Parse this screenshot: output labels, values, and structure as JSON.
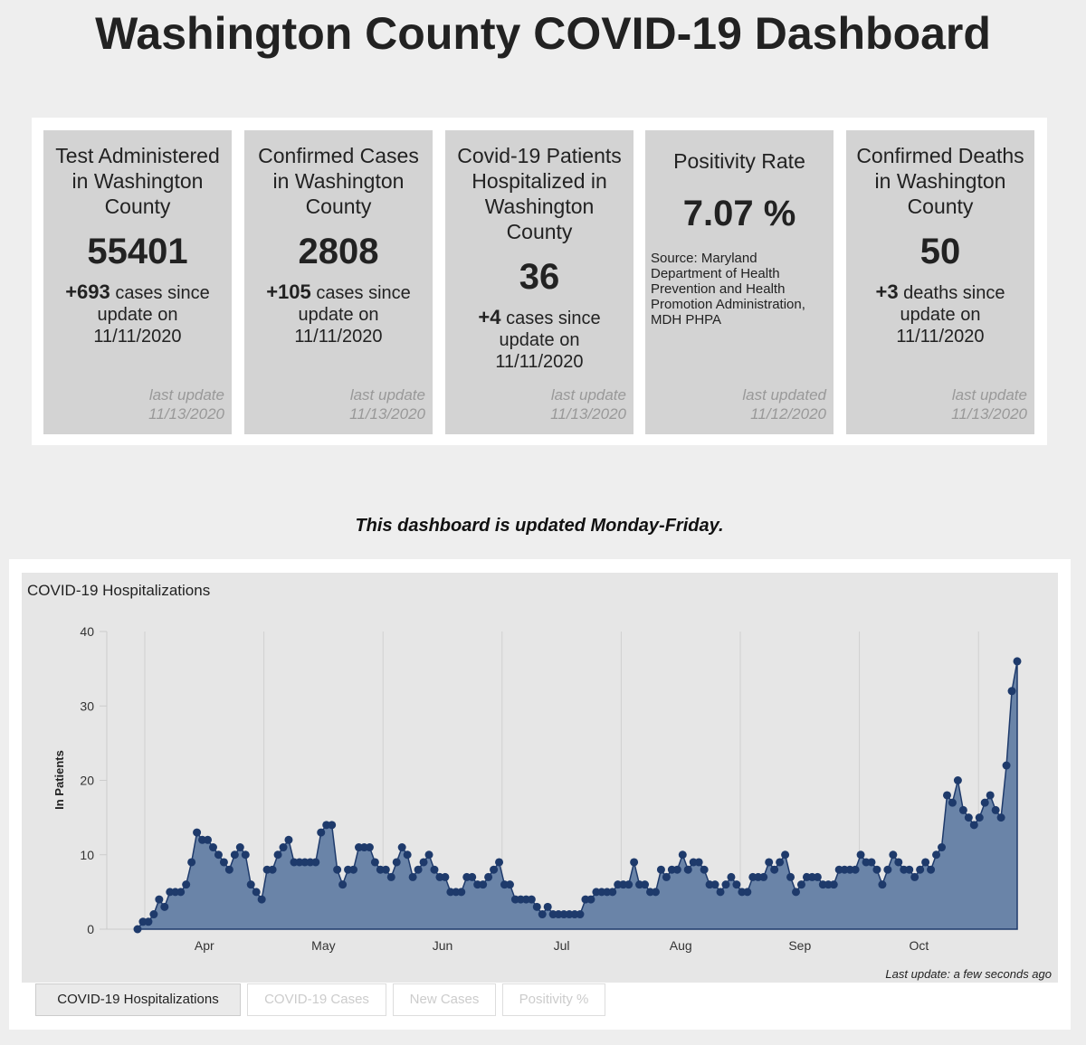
{
  "header": {
    "title": "Washington County COVID-19 Dashboard"
  },
  "cards": [
    {
      "title": "Test Administered in Washington County",
      "value": "55401",
      "change": "+693",
      "change_text": "cases since update on 11/11/2020",
      "footer_label": "last update",
      "footer_date": "11/13/2020"
    },
    {
      "title": "Confirmed Cases in Washington County",
      "value": "2808",
      "change": "+105",
      "change_text": "cases since update on 11/11/2020",
      "footer_label": "last update",
      "footer_date": "11/13/2020"
    },
    {
      "title": "Covid-19 Patients Hospitalized in Washington County",
      "value": "36",
      "change": "+4",
      "change_text": "cases since update on 11/11/2020",
      "footer_label": "last update",
      "footer_date": "11/13/2020"
    },
    {
      "title": "Positivity Rate",
      "value": "7.07 %",
      "source": "Source: Maryland Department of Health Prevention and Health Promotion Administration, MDH PHPA",
      "footer_label": "last updated",
      "footer_date": "11/12/2020"
    },
    {
      "title": "Confirmed Deaths in Washington County",
      "value": "50",
      "change": "+3",
      "change_text": "deaths since update on 11/11/2020",
      "footer_label": "last update",
      "footer_date": "11/13/2020"
    }
  ],
  "notice": "This dashboard is updated Monday-Friday.",
  "chart_data": {
    "type": "area",
    "title": "COVID-19 Hospitalizations",
    "y_label": "In Patients",
    "x_labels": [
      "Apr",
      "May",
      "Jun",
      "Jul",
      "Aug",
      "Sep",
      "Oct"
    ],
    "values": [
      0,
      1,
      1,
      2,
      4,
      3,
      5,
      5,
      5,
      6,
      9,
      13,
      12,
      12,
      11,
      10,
      9,
      8,
      10,
      11,
      10,
      6,
      5,
      4,
      8,
      8,
      10,
      11,
      12,
      9,
      9,
      9,
      9,
      9,
      13,
      14,
      14,
      8,
      6,
      8,
      8,
      11,
      11,
      11,
      9,
      8,
      8,
      7,
      9,
      11,
      10,
      7,
      8,
      9,
      10,
      8,
      7,
      7,
      5,
      5,
      5,
      7,
      7,
      6,
      6,
      7,
      8,
      9,
      6,
      6,
      4,
      4,
      4,
      4,
      3,
      2,
      3,
      2,
      2,
      2,
      2,
      2,
      2,
      4,
      4,
      5,
      5,
      5,
      5,
      6,
      6,
      6,
      9,
      6,
      6,
      5,
      5,
      8,
      7,
      8,
      8,
      10,
      8,
      9,
      9,
      8,
      6,
      6,
      5,
      6,
      7,
      6,
      5,
      5,
      7,
      7,
      7,
      9,
      8,
      9,
      10,
      7,
      5,
      6,
      7,
      7,
      7,
      6,
      6,
      6,
      8,
      8,
      8,
      8,
      10,
      9,
      9,
      8,
      6,
      8,
      10,
      9,
      8,
      8,
      7,
      8,
      9,
      8,
      10,
      11,
      18,
      17,
      20,
      16,
      15,
      14,
      15,
      17,
      18,
      16,
      15,
      22,
      32,
      36
    ],
    "ylim": [
      0,
      40
    ],
    "yticks": [
      0,
      10,
      20,
      30,
      40
    ],
    "color": "#6a84a8",
    "line_color": "#1e3a6b",
    "last_update": "Last update: a few seconds ago"
  },
  "tabs": [
    "COVID-19 Hospitalizations",
    "COVID-19 Cases",
    "New Cases",
    "Positivity %"
  ]
}
